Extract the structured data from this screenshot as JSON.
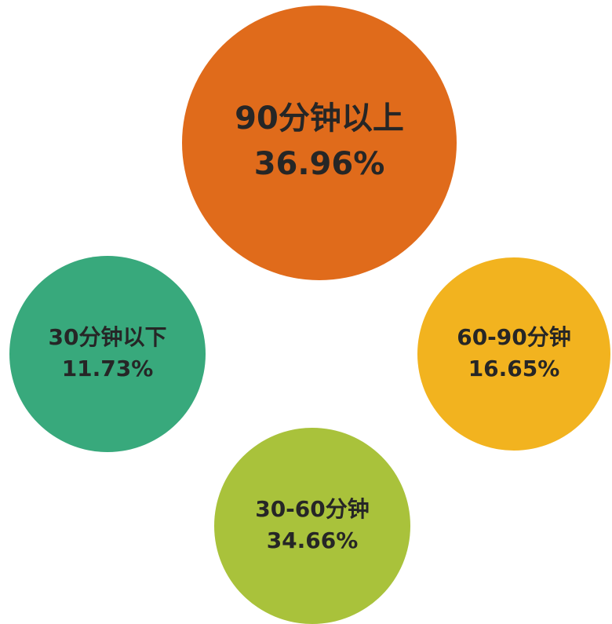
{
  "nodes": [
    {
      "label": "90分钟以上",
      "value": "36.96%",
      "color": "#e06b1b"
    },
    {
      "label": "30分钟以下",
      "value": "11.73%",
      "color": "#38a97c"
    },
    {
      "label": "60-90分钟",
      "value": "16.65%",
      "color": "#f2b31f"
    },
    {
      "label": "30-60分钟",
      "value": "34.66%",
      "color": "#a9c23b"
    }
  ]
}
